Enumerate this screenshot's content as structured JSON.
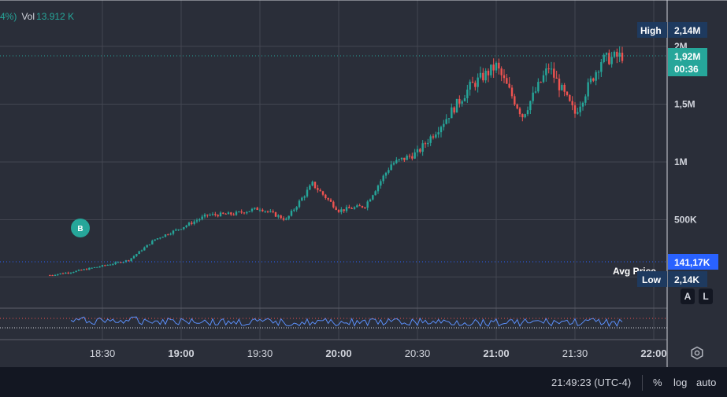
{
  "legend": {
    "pct": "4%)",
    "vol_label": "Vol",
    "vol_value": "13.912 K"
  },
  "markers": {
    "buy": "B"
  },
  "price_axis": {
    "ticks": [
      {
        "label": "2M",
        "value": 2000000
      },
      {
        "label": "1,5M",
        "value": 1500000
      },
      {
        "label": "1M",
        "value": 1000000
      },
      {
        "label": "500K",
        "value": 500000
      }
    ],
    "high": {
      "label": "High",
      "value_label": "2,14M",
      "value": 2140000
    },
    "current": {
      "value_label": "1,92M",
      "countdown": "00:36",
      "value": 1920000
    },
    "avg": {
      "label": "Avg Price",
      "value_label": "141,17K",
      "value": 141170
    },
    "low": {
      "label": "Low",
      "value_label": "2,14K",
      "value": 2140
    }
  },
  "time_axis": {
    "ticks": [
      {
        "label": "18:30",
        "bold": false
      },
      {
        "label": "19:00",
        "bold": true
      },
      {
        "label": "19:30",
        "bold": false
      },
      {
        "label": "20:00",
        "bold": true
      },
      {
        "label": "20:30",
        "bold": false
      },
      {
        "label": "21:00",
        "bold": true
      },
      {
        "label": "21:30",
        "bold": false
      },
      {
        "label": "22:00",
        "bold": true
      }
    ]
  },
  "toolbar": {
    "time": "21:49:23 (UTC-4)",
    "percent": "%",
    "log": "log",
    "auto": "auto",
    "a_label": "A",
    "l_label": "L"
  },
  "colors": {
    "up": "#26a69a",
    "down": "#ef5350",
    "avg_label": "#2962ff",
    "current_label": "#26a69a",
    "high_low_label": "#1e3a5f",
    "indicator_line": "#5b8ff9"
  },
  "chart_data": {
    "type": "candlestick",
    "x_start": "18:10",
    "x_end": "21:48",
    "y_range": [
      0,
      2200000
    ],
    "series": [
      {
        "name": "",
        "anchors": [
          [
            "18:10",
            20000
          ],
          [
            "18:20",
            55000
          ],
          [
            "18:30",
            100000
          ],
          [
            "18:40",
            150000
          ],
          [
            "18:50",
            330000
          ],
          [
            "19:00",
            430000
          ],
          [
            "19:10",
            540000
          ],
          [
            "19:20",
            550000
          ],
          [
            "19:30",
            600000
          ],
          [
            "19:40",
            500000
          ],
          [
            "19:50",
            810000
          ],
          [
            "20:00",
            580000
          ],
          [
            "20:10",
            620000
          ],
          [
            "20:20",
            980000
          ],
          [
            "20:30",
            1080000
          ],
          [
            "20:40",
            1350000
          ],
          [
            "20:50",
            1650000
          ],
          [
            "21:00",
            1830000
          ],
          [
            "21:10",
            1400000
          ],
          [
            "21:20",
            1820000
          ],
          [
            "21:30",
            1420000
          ],
          [
            "21:40",
            1880000
          ],
          [
            "21:48",
            1920000
          ]
        ]
      }
    ]
  }
}
